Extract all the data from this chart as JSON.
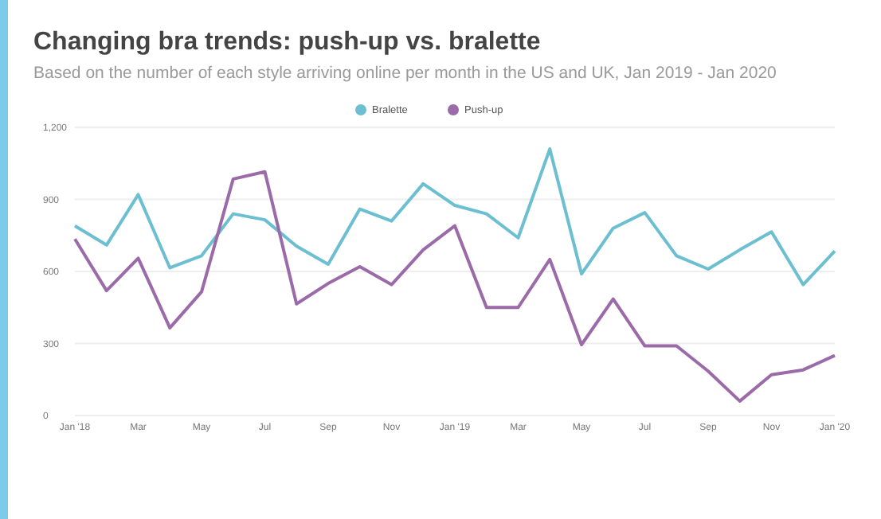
{
  "chart_data": {
    "type": "line",
    "title": "Changing bra trends: push-up vs. bralette",
    "subtitle": "Based on the number of each style arriving online per month in the US and UK, Jan 2019 - Jan 2020",
    "categories": [
      "Jan '18",
      null,
      "Mar",
      null,
      "May",
      null,
      "Jul",
      null,
      "Sep",
      null,
      "Nov",
      null,
      "Jan '19",
      null,
      "Mar",
      null,
      "May",
      null,
      "Jul",
      null,
      "Sep",
      null,
      "Nov",
      null,
      "Jan '20"
    ],
    "series": [
      {
        "name": "Bralette",
        "color": "#6bbfd0",
        "values": [
          790,
          710,
          920,
          615,
          665,
          840,
          815,
          705,
          630,
          860,
          810,
          965,
          875,
          840,
          740,
          1110,
          590,
          780,
          845,
          665,
          610,
          690,
          765,
          545,
          685
        ]
      },
      {
        "name": "Push-up",
        "color": "#9b6aa8",
        "values": [
          735,
          520,
          655,
          365,
          515,
          985,
          1015,
          465,
          550,
          620,
          545,
          690,
          790,
          450,
          450,
          650,
          295,
          485,
          290,
          290,
          185,
          60,
          170,
          190,
          250
        ]
      }
    ],
    "ylim": [
      0,
      1200
    ],
    "yticks": [
      0,
      300,
      600,
      900,
      {
        "value": 1200,
        "label": "1,200"
      }
    ],
    "grid": "y",
    "legend": "top",
    "marker": "none",
    "line_style": "solid"
  }
}
